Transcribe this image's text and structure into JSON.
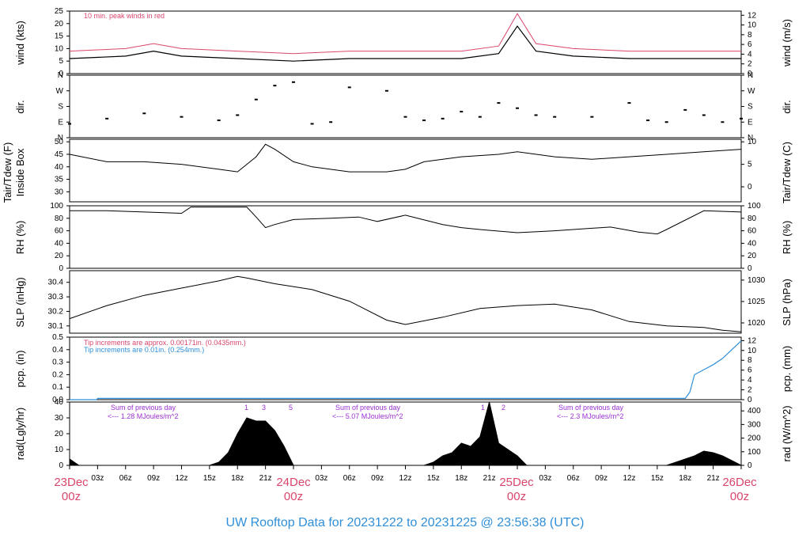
{
  "title": "UW Rooftop Data for 20231222  to  20231225 @ 23:56:38  (UTC)",
  "time_axis": {
    "hour_labels": [
      "03z",
      "06z",
      "09z",
      "12z",
      "15z",
      "18z",
      "21z",
      "03z",
      "06z",
      "09z",
      "12z",
      "15z",
      "18z",
      "21z",
      "03z",
      "06z",
      "09z",
      "12z",
      "15z",
      "18z",
      "21z"
    ],
    "day_labels": [
      {
        "date": "23Dec",
        "time": "00z"
      },
      {
        "date": "24Dec",
        "time": "00z"
      },
      {
        "date": "25Dec",
        "time": "00z"
      },
      {
        "date": "26Dec",
        "time": "00z"
      }
    ]
  },
  "panels": {
    "wind": {
      "left_label": "wind (kts)",
      "right_label": "wind (m/s)",
      "left_ticks": [
        "0",
        "5",
        "10",
        "15",
        "20",
        "25"
      ],
      "right_ticks": [
        "0",
        "2",
        "4",
        "6",
        "8",
        "10",
        "12"
      ],
      "note": "10 min. peak winds in red",
      "colors": {
        "mean": "#000000",
        "peak": "#d9466b"
      }
    },
    "dir": {
      "left_label": "dir.",
      "right_label": "dir.",
      "ticks": [
        "N",
        "E",
        "S",
        "W",
        "N"
      ]
    },
    "temp": {
      "left_label_1": "Tair/Tdew (F)",
      "left_label_2": "Inside Box",
      "right_label": "Tair/Tdew (C)",
      "left_ticks": [
        "30",
        "35",
        "40",
        "45",
        "50"
      ],
      "right_ticks": [
        "0",
        "5",
        "10"
      ]
    },
    "rh": {
      "left_label": "RH (%)",
      "right_label": "RH (%)",
      "left_ticks": [
        "0",
        "20",
        "40",
        "60",
        "80",
        "100"
      ],
      "right_ticks": [
        "0",
        "20",
        "40",
        "60",
        "80",
        "100"
      ]
    },
    "slp": {
      "left_label": "SLP (inHg)",
      "right_label": "SLP (hPa)",
      "left_ticks": [
        "30.1",
        "30.2",
        "30.3",
        "30.4"
      ],
      "right_ticks": [
        "1020",
        "1025",
        "1030"
      ]
    },
    "pcp": {
      "left_label": "pcp. (in)",
      "right_label": "pcp. (mm)",
      "left_ticks": [
        "0.0",
        "0.1",
        "0.2",
        "0.3",
        "0.4",
        "0.5"
      ],
      "right_ticks": [
        "0",
        "2",
        "4",
        "6",
        "8",
        "10",
        "12"
      ],
      "note_red": "Tip increments are approx. 0.00171in. (0.0435mm.)",
      "note_blue": "Tip increments are 0.01in. (0.254mm.)",
      "line_color": "#2f8fd8"
    },
    "rad": {
      "left_label": "rad(Lgly/hr)",
      "right_label": "rad (W/m^2)",
      "left_ticks": [
        "0",
        "10",
        "20",
        "30",
        "40"
      ],
      "right_ticks": [
        "0",
        "100",
        "200",
        "300",
        "400"
      ],
      "sums": [
        {
          "line1": "Sum of previous day",
          "line2": "<--- 1.28 MJoules/m^2"
        },
        {
          "line1": "Sum of previous day",
          "line2": "<--- 5.07 MJoules/m^2"
        },
        {
          "line1": "Sum of previous day",
          "line2": "<--- 2.3 MJoules/m^2"
        }
      ],
      "markers": [
        "1",
        "3",
        "5",
        "1",
        "2"
      ]
    }
  },
  "chart_data": [
    {
      "type": "line",
      "title": "",
      "xlabel": "",
      "ylabel": "wind (kts)",
      "ylim": [
        0,
        25
      ],
      "series": [
        {
          "name": "",
          "x": [
            0,
            6,
            9,
            12,
            18,
            24,
            30,
            36,
            42,
            46,
            48,
            50,
            54,
            60,
            66,
            72
          ],
          "values": [
            6,
            7,
            9,
            7,
            6,
            5,
            6,
            6,
            6,
            8,
            19,
            9,
            7,
            6,
            6,
            6
          ]
        },
        {
          "name": "10 min. peak winds in red",
          "x": [
            0,
            6,
            9,
            12,
            18,
            24,
            30,
            36,
            42,
            46,
            48,
            50,
            54,
            60,
            66,
            72
          ],
          "values": [
            9,
            10,
            12,
            10,
            9,
            8,
            9,
            9,
            9,
            11,
            24,
            12,
            10,
            9,
            9,
            9
          ]
        }
      ]
    },
    {
      "type": "scatter",
      "ylabel": "dir.",
      "yticks": [
        "N",
        "E",
        "S",
        "W",
        "N"
      ],
      "x": [
        0,
        4,
        8,
        12,
        16,
        18,
        20,
        22,
        24,
        26,
        28,
        30,
        34,
        36,
        38,
        40,
        42,
        44,
        46,
        48,
        50,
        52,
        56,
        60,
        62,
        64,
        66,
        68,
        70,
        72
      ],
      "values": [
        80,
        110,
        140,
        120,
        100,
        130,
        220,
        300,
        320,
        80,
        90,
        290,
        270,
        120,
        100,
        110,
        150,
        120,
        200,
        170,
        130,
        120,
        120,
        200,
        100,
        90,
        160,
        130,
        90,
        110
      ]
    },
    {
      "type": "line",
      "ylabel": "Tair/Tdew (F)",
      "ylim": [
        26,
        51
      ],
      "x": [
        0,
        4,
        8,
        12,
        16,
        18,
        20,
        21,
        22,
        24,
        26,
        30,
        34,
        36,
        38,
        42,
        46,
        48,
        52,
        56,
        60,
        64,
        68,
        72
      ],
      "values": [
        45,
        42,
        42,
        41,
        39,
        38,
        44,
        49,
        47,
        42,
        40,
        38,
        38,
        39,
        42,
        44,
        45,
        46,
        44,
        43,
        44,
        45,
        46,
        47
      ]
    },
    {
      "type": "line",
      "ylabel": "RH (%)",
      "ylim": [
        0,
        100
      ],
      "x": [
        0,
        4,
        8,
        12,
        13,
        16,
        19,
        20,
        21,
        22,
        24,
        28,
        31,
        33,
        36,
        40,
        42,
        44,
        48,
        52,
        56,
        58,
        61,
        63,
        64,
        68,
        72
      ],
      "values": [
        92,
        92,
        90,
        88,
        98,
        98,
        98,
        82,
        65,
        70,
        78,
        80,
        82,
        75,
        85,
        70,
        65,
        62,
        57,
        60,
        64,
        66,
        58,
        55,
        62,
        92,
        90
      ]
    },
    {
      "type": "line",
      "ylabel": "SLP (inHg)",
      "ylim": [
        30.05,
        30.48
      ],
      "x": [
        0,
        4,
        8,
        12,
        16,
        18,
        19,
        22,
        26,
        30,
        34,
        36,
        40,
        44,
        48,
        52,
        56,
        60,
        64,
        68,
        70,
        72
      ],
      "values": [
        30.15,
        30.24,
        30.31,
        30.36,
        30.41,
        30.44,
        30.43,
        30.39,
        30.35,
        30.27,
        30.14,
        30.11,
        30.16,
        30.22,
        30.24,
        30.25,
        30.21,
        30.13,
        30.1,
        30.09,
        30.07,
        30.06
      ]
    },
    {
      "type": "line",
      "ylabel": "pcp. (in)",
      "ylim": [
        0,
        0.5
      ],
      "x": [
        0,
        2.9,
        3,
        66,
        66.5,
        67,
        68,
        69,
        70,
        71,
        72
      ],
      "values": [
        0,
        0,
        0.01,
        0.01,
        0.06,
        0.2,
        0.24,
        0.28,
        0.33,
        0.4,
        0.47
      ]
    },
    {
      "type": "area",
      "ylabel": "rad(Lgly/hr)",
      "ylim": [
        0,
        40
      ],
      "x": [
        0,
        0.5,
        1,
        15,
        16,
        17,
        18,
        19,
        20,
        21,
        22,
        23,
        24,
        38,
        39,
        40,
        41,
        42,
        43,
        44,
        45,
        46,
        47,
        48,
        49,
        64,
        65,
        66,
        67,
        68,
        69,
        70,
        71,
        72
      ],
      "values": [
        4,
        2,
        0,
        0,
        2,
        8,
        20,
        30,
        28,
        28,
        22,
        12,
        0,
        0,
        2,
        6,
        8,
        14,
        12,
        18,
        40,
        14,
        10,
        6,
        0,
        0,
        2,
        4,
        6,
        9,
        8,
        6,
        3,
        0
      ]
    }
  ]
}
